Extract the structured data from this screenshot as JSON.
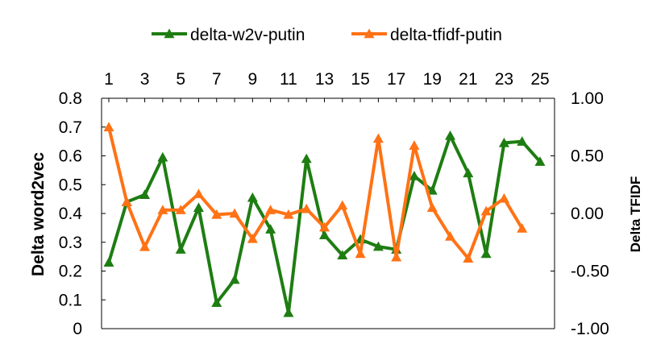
{
  "chart_data": {
    "type": "line",
    "title": "",
    "x": [
      1,
      2,
      3,
      4,
      5,
      6,
      7,
      8,
      9,
      10,
      11,
      12,
      13,
      14,
      15,
      16,
      17,
      18,
      19,
      20,
      21,
      22,
      23,
      24,
      25
    ],
    "x_tick_labels": [
      "1",
      "3",
      "5",
      "7",
      "9",
      "11",
      "13",
      "15",
      "17",
      "19",
      "21",
      "23",
      "25"
    ],
    "xlim": [
      1,
      25
    ],
    "ylabel_left": "Delta word2vec",
    "ylabel_right": "Delta TFIDF",
    "ylim_left": [
      0,
      0.8
    ],
    "ylim_right": [
      -1.0,
      1.0
    ],
    "y_left_ticks": [
      "0",
      "0.1",
      "0.2",
      "0.3",
      "0.4",
      "0.5",
      "0.6",
      "0.7",
      "0.8"
    ],
    "y_right_ticks": [
      "-1.00",
      "-0.50",
      "0.00",
      "0.50",
      "1.00"
    ],
    "legend_position": "top",
    "grid": false,
    "series": [
      {
        "name": "delta-w2v-putin",
        "axis": "left",
        "color": "#1e7d12",
        "marker": "triangle",
        "values": [
          0.23,
          0.44,
          0.465,
          0.595,
          0.275,
          0.42,
          0.09,
          0.17,
          0.455,
          0.345,
          0.055,
          0.59,
          0.325,
          0.255,
          0.31,
          0.285,
          0.275,
          0.53,
          0.48,
          0.67,
          0.54,
          0.26,
          0.645,
          0.65,
          0.58
        ]
      },
      {
        "name": "delta-tfidf-putin",
        "axis": "right",
        "color": "#ff7215",
        "marker": "triangle",
        "values": [
          0.75,
          0.1,
          -0.29,
          0.03,
          0.03,
          0.17,
          -0.01,
          0.0,
          -0.22,
          0.03,
          -0.01,
          0.04,
          -0.12,
          0.07,
          -0.35,
          0.65,
          -0.38,
          0.59,
          0.05,
          -0.2,
          -0.39,
          0.02,
          0.13,
          -0.13,
          null
        ]
      }
    ]
  }
}
